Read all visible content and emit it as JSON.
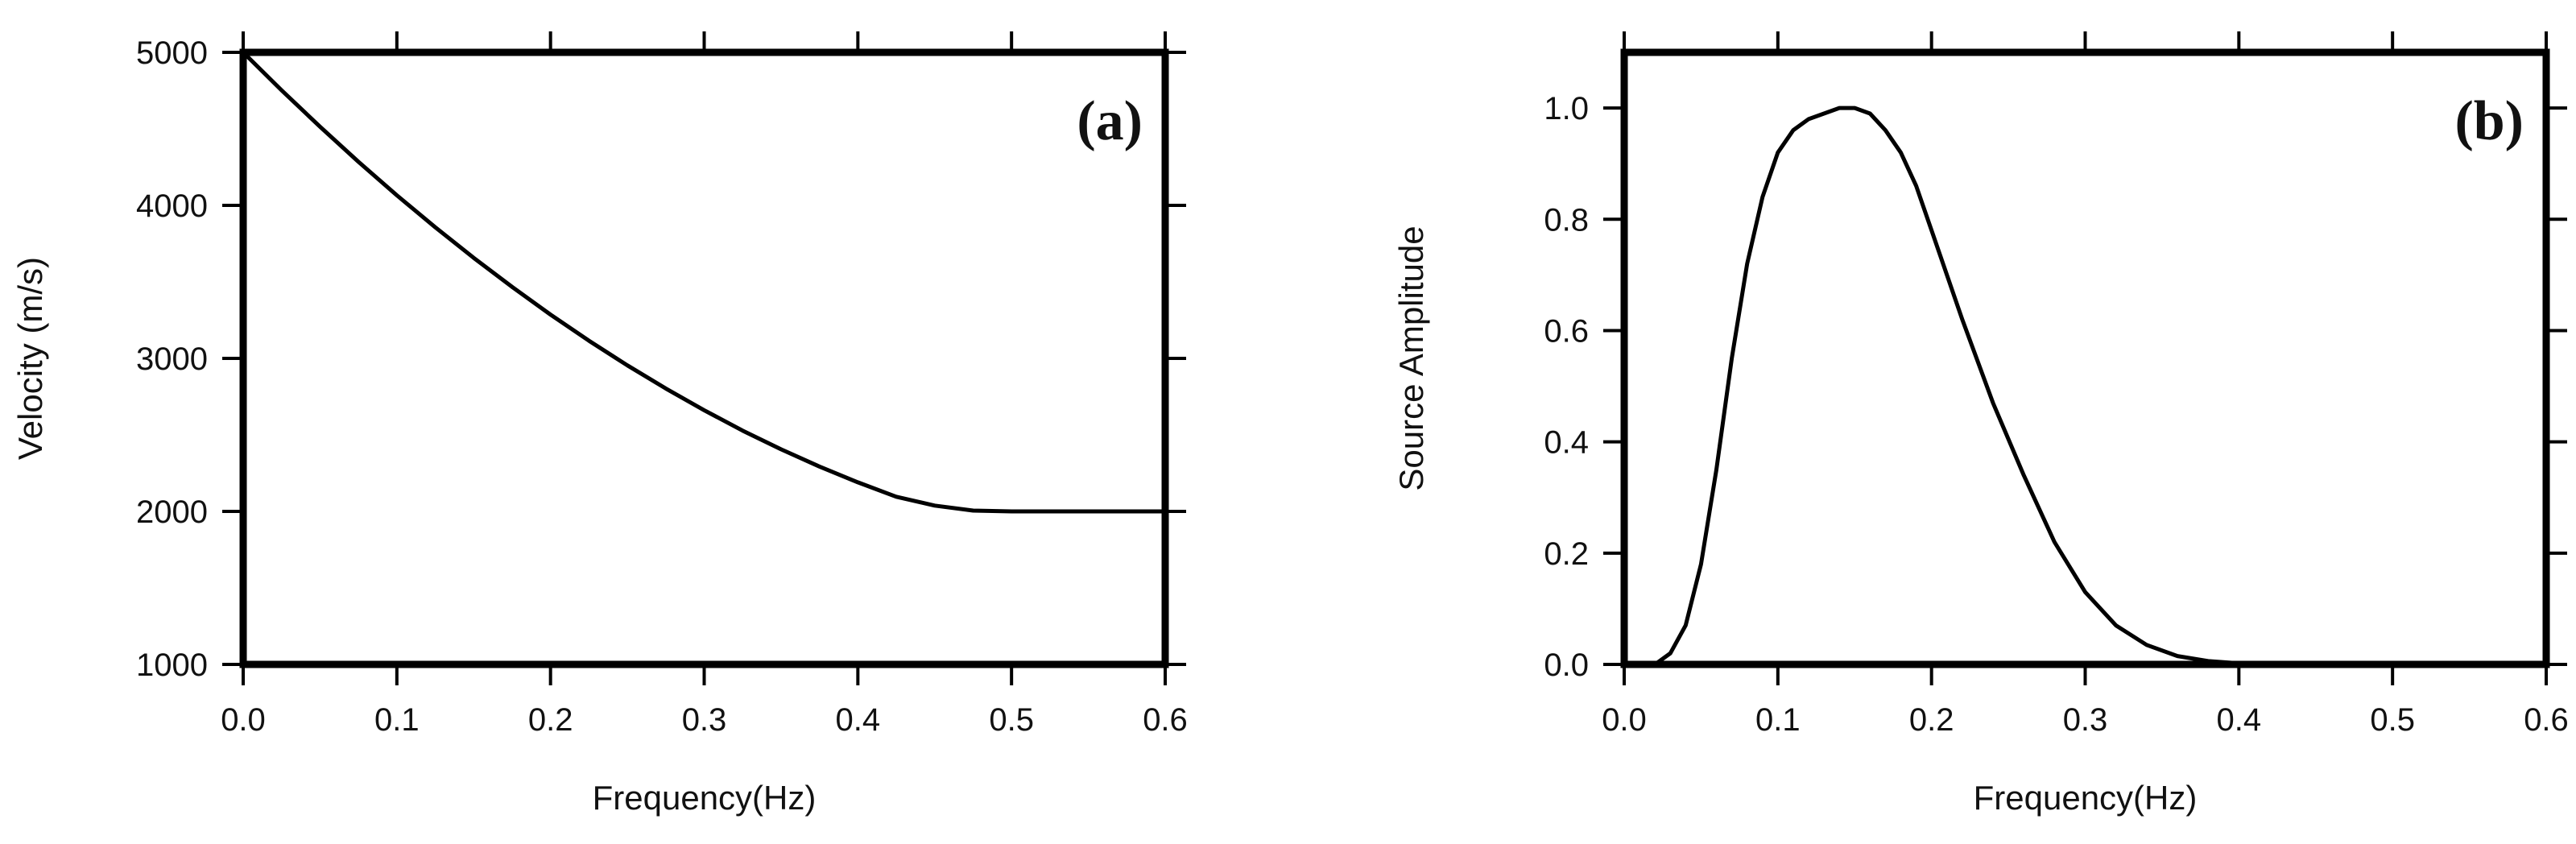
{
  "chart_data": [
    {
      "type": "line",
      "panel_label": "(a)",
      "xlabel": "Frequency(Hz)",
      "ylabel": "Velocity (m/s)",
      "xlim": [
        0.0,
        0.6
      ],
      "ylim": [
        1000,
        5000
      ],
      "xticks": [
        "0.0",
        "0.1",
        "0.2",
        "0.3",
        "0.4",
        "0.5",
        "0.6"
      ],
      "yticks": [
        "1000",
        "2000",
        "3000",
        "4000",
        "5000"
      ],
      "grid": false,
      "series": [
        {
          "x": [
            0.0,
            0.025,
            0.05,
            0.075,
            0.1,
            0.125,
            0.15,
            0.175,
            0.2,
            0.225,
            0.25,
            0.275,
            0.3,
            0.325,
            0.35,
            0.375,
            0.4,
            0.425,
            0.45,
            0.475,
            0.5,
            0.525,
            0.55,
            0.575,
            0.6
          ],
          "y": [
            5000,
            4752,
            4514,
            4285,
            4066,
            3857,
            3657,
            3467,
            3286,
            3115,
            2954,
            2803,
            2661,
            2528,
            2406,
            2293,
            2190,
            2096,
            2038,
            2005,
            2000,
            2000,
            2000,
            2000,
            2000
          ]
        }
      ]
    },
    {
      "type": "line",
      "panel_label": "(b)",
      "xlabel": "Frequency(Hz)",
      "ylabel": "Source Amplitude",
      "xlim": [
        0.0,
        0.6
      ],
      "ylim": [
        0.0,
        1.1
      ],
      "xticks": [
        "0.0",
        "0.1",
        "0.2",
        "0.3",
        "0.4",
        "0.5",
        "0.6"
      ],
      "yticks": [
        "0.0",
        "0.2",
        "0.4",
        "0.6",
        "0.8",
        "1.0"
      ],
      "grid": false,
      "series": [
        {
          "x": [
            0.0,
            0.02,
            0.03,
            0.04,
            0.05,
            0.06,
            0.07,
            0.08,
            0.09,
            0.1,
            0.11,
            0.12,
            0.13,
            0.14,
            0.15,
            0.16,
            0.17,
            0.18,
            0.19,
            0.2,
            0.22,
            0.24,
            0.26,
            0.28,
            0.3,
            0.32,
            0.34,
            0.36,
            0.38,
            0.4,
            0.43,
            0.46,
            0.5,
            0.55,
            0.6
          ],
          "y": [
            0.0,
            0.0,
            0.02,
            0.07,
            0.18,
            0.35,
            0.55,
            0.72,
            0.84,
            0.92,
            0.96,
            0.98,
            0.99,
            1.0,
            1.0,
            0.99,
            0.96,
            0.92,
            0.86,
            0.78,
            0.62,
            0.47,
            0.34,
            0.22,
            0.13,
            0.07,
            0.035,
            0.015,
            0.006,
            0.002,
            0.0,
            0.0,
            0.0,
            0.0,
            0.0
          ]
        }
      ]
    }
  ]
}
